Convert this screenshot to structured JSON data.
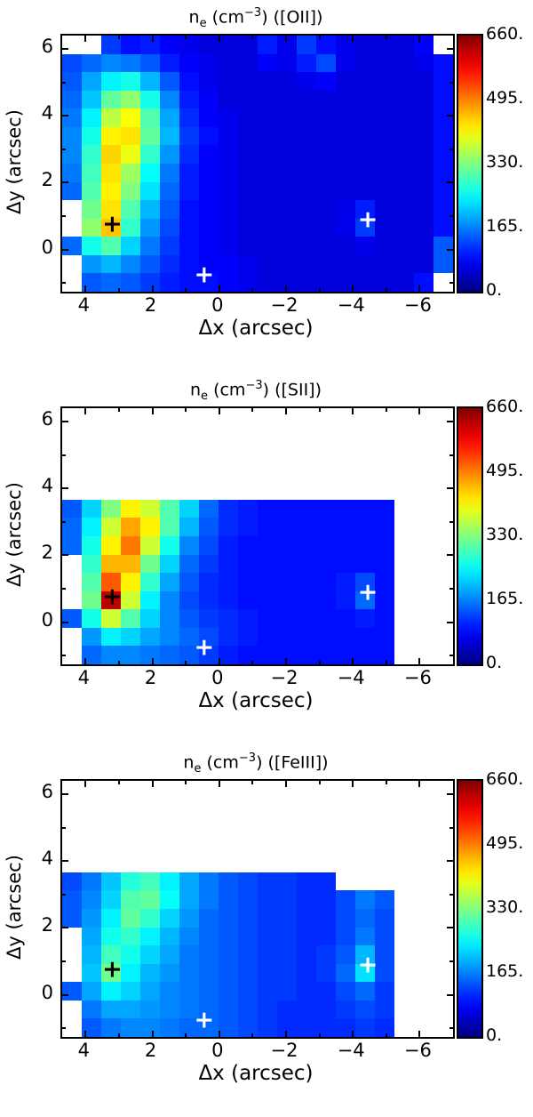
{
  "figure": {
    "background": "#ffffff",
    "axis_color": "#000000"
  },
  "chart_data": [
    {
      "type": "heatmap",
      "id": "OII",
      "title": "n_e (cm^-3) ([OII])",
      "title_parts": {
        "base": "n",
        "sub": "e",
        "mid": " (cm",
        "sup": "−3",
        "tail": ") ([OII])"
      },
      "xlabel": "Δx (arcsec)",
      "ylabel": "Δy (arcsec)",
      "xlim": [
        4.7,
        -7.0
      ],
      "ylim": [
        -1.26,
        6.4
      ],
      "x_ticks_major": [
        4,
        2,
        0,
        -2,
        -4,
        -6
      ],
      "x_tick_labels": [
        "4",
        "2",
        "0",
        "−2",
        "−4",
        "−6"
      ],
      "x_ticks_minor": [
        3,
        1,
        -1,
        -3,
        -5
      ],
      "y_ticks_major": [
        6,
        4,
        2,
        0
      ],
      "y_tick_labels": [
        "6",
        "4",
        "2",
        "0"
      ],
      "y_ticks_minor": [
        5,
        3,
        1,
        -1
      ],
      "colormap": "jet",
      "colorbar": {
        "min": 0,
        "max": 660,
        "tick_labels": [
          "660.",
          "495.",
          "330.",
          "165.",
          "0."
        ]
      },
      "grid": [
        [
          null,
          null,
          120,
          90,
          100,
          80,
          70,
          60,
          60,
          60,
          100,
          70,
          120,
          90,
          70,
          60,
          60,
          60,
          80,
          null
        ],
        [
          130,
          150,
          170,
          160,
          140,
          100,
          80,
          70,
          60,
          60,
          80,
          70,
          100,
          130,
          70,
          60,
          60,
          60,
          70,
          90
        ],
        [
          140,
          190,
          240,
          260,
          200,
          140,
          90,
          70,
          60,
          60,
          60,
          60,
          70,
          80,
          60,
          60,
          60,
          60,
          60,
          90
        ],
        [
          150,
          210,
          310,
          340,
          260,
          170,
          100,
          80,
          60,
          60,
          60,
          60,
          60,
          60,
          60,
          60,
          60,
          60,
          60,
          90
        ],
        [
          160,
          240,
          370,
          410,
          300,
          190,
          110,
          80,
          70,
          60,
          60,
          60,
          60,
          60,
          60,
          60,
          60,
          60,
          60,
          90
        ],
        [
          170,
          260,
          420,
          430,
          310,
          200,
          120,
          90,
          70,
          60,
          60,
          60,
          60,
          60,
          60,
          60,
          60,
          60,
          60,
          90
        ],
        [
          170,
          280,
          440,
          400,
          280,
          180,
          110,
          80,
          70,
          60,
          60,
          60,
          60,
          60,
          60,
          60,
          60,
          60,
          60,
          90
        ],
        [
          160,
          290,
          430,
          350,
          250,
          160,
          100,
          80,
          70,
          60,
          60,
          60,
          60,
          60,
          60,
          60,
          60,
          60,
          60,
          90
        ],
        [
          150,
          300,
          420,
          330,
          230,
          150,
          100,
          80,
          70,
          60,
          60,
          60,
          60,
          60,
          60,
          60,
          60,
          60,
          60,
          90
        ],
        [
          null,
          320,
          430,
          300,
          200,
          140,
          90,
          80,
          70,
          60,
          60,
          60,
          60,
          60,
          70,
          100,
          60,
          60,
          60,
          90
        ],
        [
          null,
          340,
          450,
          280,
          180,
          130,
          90,
          80,
          70,
          60,
          60,
          60,
          60,
          60,
          70,
          120,
          60,
          60,
          60,
          90
        ],
        [
          150,
          260,
          300,
          220,
          160,
          120,
          90,
          80,
          70,
          60,
          60,
          60,
          60,
          60,
          60,
          70,
          60,
          60,
          60,
          140
        ],
        [
          null,
          180,
          200,
          170,
          140,
          110,
          90,
          80,
          80,
          70,
          60,
          60,
          60,
          60,
          60,
          60,
          60,
          60,
          60,
          140
        ],
        [
          null,
          140,
          150,
          140,
          120,
          100,
          90,
          90,
          80,
          70,
          60,
          60,
          60,
          60,
          60,
          60,
          60,
          60,
          90,
          null
        ]
      ],
      "markers": [
        {
          "x": 3.2,
          "y": 0.75,
          "color": "#000000",
          "symbol": "+"
        },
        {
          "x": -4.45,
          "y": 0.9,
          "color": "#ffffff",
          "symbol": "+"
        },
        {
          "x": 0.45,
          "y": -0.75,
          "color": "#ffffff",
          "symbol": "+"
        }
      ]
    },
    {
      "type": "heatmap",
      "id": "SII",
      "title": "n_e (cm^-3) ([SII])",
      "title_parts": {
        "base": "n",
        "sub": "e",
        "mid": " (cm",
        "sup": "−3",
        "tail": ") ([SII])"
      },
      "xlabel": "Δx (arcsec)",
      "ylabel": "Δy (arcsec)",
      "xlim": [
        4.7,
        -7.0
      ],
      "ylim": [
        -1.26,
        6.4
      ],
      "x_ticks_major": [
        4,
        2,
        0,
        -2,
        -4,
        -6
      ],
      "x_tick_labels": [
        "4",
        "2",
        "0",
        "−2",
        "−4",
        "−6"
      ],
      "x_ticks_minor": [
        3,
        1,
        -1,
        -3,
        -5
      ],
      "y_ticks_major": [
        6,
        4,
        2,
        0
      ],
      "y_tick_labels": [
        "6",
        "4",
        "2",
        "0"
      ],
      "y_ticks_minor": [
        5,
        3,
        1,
        -1
      ],
      "colormap": "jet",
      "colorbar": {
        "min": 0,
        "max": 660,
        "tick_labels": [
          "660.",
          "495.",
          "330.",
          "165.",
          "0."
        ]
      },
      "grid": [
        [
          null,
          null,
          null,
          null,
          null,
          null,
          null,
          null,
          null,
          null,
          null,
          null,
          null,
          null,
          null,
          null,
          null,
          null,
          null,
          null
        ],
        [
          null,
          null,
          null,
          null,
          null,
          null,
          null,
          null,
          null,
          null,
          null,
          null,
          null,
          null,
          null,
          null,
          null,
          null,
          null,
          null
        ],
        [
          null,
          null,
          null,
          null,
          null,
          null,
          null,
          null,
          null,
          null,
          null,
          null,
          null,
          null,
          null,
          null,
          null,
          null,
          null,
          null
        ],
        [
          null,
          null,
          null,
          null,
          null,
          null,
          null,
          null,
          null,
          null,
          null,
          null,
          null,
          null,
          null,
          null,
          null,
          null,
          null,
          null
        ],
        [
          null,
          null,
          null,
          null,
          null,
          null,
          null,
          null,
          null,
          null,
          null,
          null,
          null,
          null,
          null,
          null,
          null,
          null,
          null,
          null
        ],
        [
          140,
          220,
          330,
          420,
          380,
          300,
          220,
          150,
          110,
          100,
          90,
          90,
          90,
          90,
          90,
          90,
          90,
          null,
          null,
          null
        ],
        [
          150,
          240,
          380,
          470,
          420,
          300,
          200,
          140,
          110,
          100,
          90,
          90,
          90,
          90,
          90,
          90,
          90,
          null,
          null,
          null
        ],
        [
          150,
          260,
          420,
          500,
          380,
          260,
          170,
          130,
          100,
          90,
          90,
          90,
          90,
          90,
          90,
          90,
          90,
          null,
          null,
          null
        ],
        [
          null,
          280,
          460,
          460,
          320,
          220,
          150,
          120,
          100,
          90,
          90,
          90,
          90,
          90,
          90,
          90,
          90,
          null,
          null,
          null
        ],
        [
          null,
          300,
          520,
          420,
          280,
          190,
          140,
          110,
          100,
          90,
          90,
          90,
          90,
          90,
          100,
          130,
          90,
          null,
          null,
          null
        ],
        [
          null,
          320,
          620,
          380,
          240,
          170,
          130,
          110,
          100,
          90,
          90,
          90,
          90,
          90,
          100,
          150,
          90,
          null,
          null,
          null
        ],
        [
          140,
          260,
          380,
          300,
          220,
          170,
          140,
          120,
          110,
          100,
          90,
          90,
          90,
          90,
          90,
          100,
          90,
          null,
          null,
          null
        ],
        [
          null,
          180,
          240,
          220,
          190,
          170,
          150,
          130,
          110,
          100,
          90,
          90,
          90,
          90,
          90,
          90,
          90,
          null,
          null,
          null
        ],
        [
          null,
          150,
          170,
          170,
          160,
          150,
          140,
          120,
          100,
          90,
          90,
          90,
          90,
          90,
          90,
          90,
          90,
          null,
          null,
          null
        ]
      ],
      "markers": [
        {
          "x": 3.2,
          "y": 0.75,
          "color": "#000000",
          "symbol": "+"
        },
        {
          "x": -4.45,
          "y": 0.9,
          "color": "#ffffff",
          "symbol": "+"
        },
        {
          "x": 0.45,
          "y": -0.75,
          "color": "#ffffff",
          "symbol": "+"
        }
      ]
    },
    {
      "type": "heatmap",
      "id": "FeIII",
      "title": "n_e (cm^-3) ([FeIII])",
      "title_parts": {
        "base": "n",
        "sub": "e",
        "mid": " (cm",
        "sup": "−3",
        "tail": ") ([FeIII])"
      },
      "xlabel": "Δx (arcsec)",
      "ylabel": "Δy (arcsec)",
      "xlim": [
        4.7,
        -7.0
      ],
      "ylim": [
        -1.26,
        6.4
      ],
      "x_ticks_major": [
        4,
        2,
        0,
        -2,
        -4,
        -6
      ],
      "x_tick_labels": [
        "4",
        "2",
        "0",
        "−2",
        "−4",
        "−6"
      ],
      "x_ticks_minor": [
        3,
        1,
        -1,
        -3,
        -5
      ],
      "y_ticks_major": [
        6,
        4,
        2,
        0
      ],
      "y_tick_labels": [
        "6",
        "4",
        "2",
        "0"
      ],
      "y_ticks_minor": [
        5,
        3,
        1,
        -1
      ],
      "colormap": "jet",
      "colorbar": {
        "min": 0,
        "max": 660,
        "tick_labels": [
          "660.",
          "495.",
          "330.",
          "165.",
          "0."
        ]
      },
      "grid": [
        [
          null,
          null,
          null,
          null,
          null,
          null,
          null,
          null,
          null,
          null,
          null,
          null,
          null,
          null,
          null,
          null,
          null,
          null,
          null,
          null
        ],
        [
          null,
          null,
          null,
          null,
          null,
          null,
          null,
          null,
          null,
          null,
          null,
          null,
          null,
          null,
          null,
          null,
          null,
          null,
          null,
          null
        ],
        [
          null,
          null,
          null,
          null,
          null,
          null,
          null,
          null,
          null,
          null,
          null,
          null,
          null,
          null,
          null,
          null,
          null,
          null,
          null,
          null
        ],
        [
          null,
          null,
          null,
          null,
          null,
          null,
          null,
          null,
          null,
          null,
          null,
          null,
          null,
          null,
          null,
          null,
          null,
          null,
          null,
          null
        ],
        [
          null,
          null,
          null,
          null,
          null,
          null,
          null,
          null,
          null,
          null,
          null,
          null,
          null,
          null,
          null,
          null,
          null,
          null,
          null,
          null
        ],
        [
          130,
          160,
          210,
          270,
          290,
          240,
          190,
          160,
          140,
          130,
          120,
          120,
          110,
          110,
          null,
          null,
          null,
          null,
          null,
          null
        ],
        [
          140,
          170,
          220,
          300,
          310,
          250,
          190,
          160,
          140,
          130,
          120,
          120,
          110,
          110,
          130,
          160,
          140,
          null,
          null,
          null
        ],
        [
          140,
          180,
          240,
          310,
          280,
          220,
          180,
          150,
          140,
          130,
          120,
          120,
          110,
          110,
          130,
          150,
          130,
          null,
          null,
          null
        ],
        [
          null,
          190,
          260,
          280,
          240,
          200,
          170,
          150,
          140,
          130,
          120,
          120,
          110,
          110,
          130,
          160,
          130,
          null,
          null,
          null
        ],
        [
          null,
          200,
          290,
          260,
          220,
          190,
          160,
          150,
          140,
          130,
          120,
          120,
          110,
          120,
          140,
          200,
          130,
          null,
          null,
          null
        ],
        [
          null,
          210,
          320,
          240,
          200,
          180,
          160,
          150,
          140,
          130,
          120,
          120,
          110,
          120,
          150,
          230,
          130,
          null,
          null,
          null
        ],
        [
          140,
          190,
          240,
          220,
          190,
          170,
          160,
          150,
          140,
          130,
          120,
          120,
          110,
          110,
          130,
          150,
          120,
          null,
          null,
          null
        ],
        [
          null,
          160,
          190,
          190,
          180,
          170,
          160,
          150,
          140,
          130,
          120,
          110,
          110,
          110,
          120,
          130,
          120,
          null,
          null,
          null
        ],
        [
          null,
          140,
          160,
          170,
          170,
          160,
          150,
          150,
          140,
          130,
          120,
          110,
          110,
          110,
          110,
          120,
          110,
          null,
          null,
          null
        ]
      ],
      "markers": [
        {
          "x": 3.2,
          "y": 0.75,
          "color": "#000000",
          "symbol": "+"
        },
        {
          "x": -4.45,
          "y": 0.9,
          "color": "#ffffff",
          "symbol": "+"
        },
        {
          "x": 0.45,
          "y": -0.75,
          "color": "#ffffff",
          "symbol": "+"
        }
      ]
    }
  ]
}
